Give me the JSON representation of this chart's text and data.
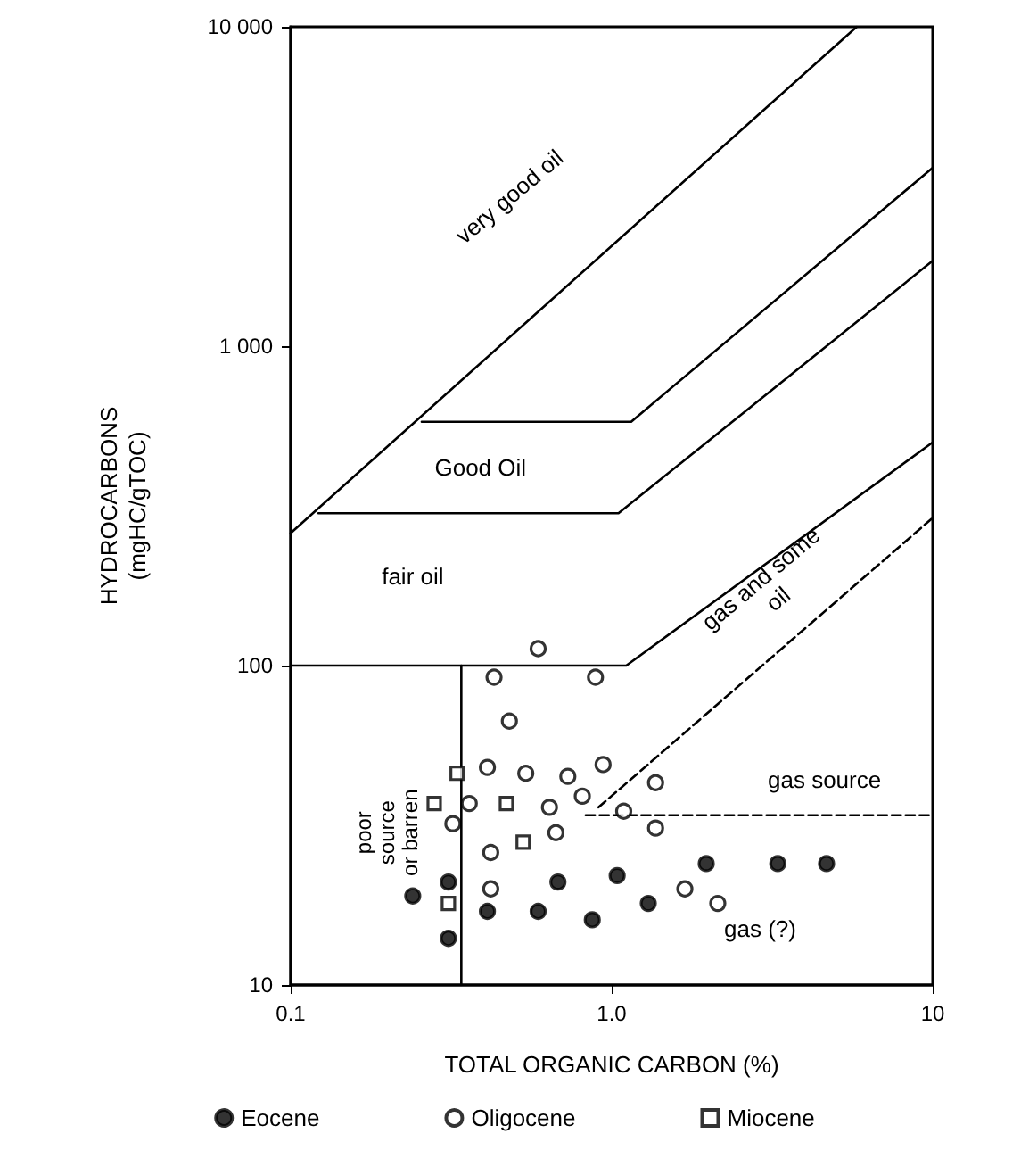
{
  "chart_data": {
    "type": "scatter",
    "xlabel": "TOTAL ORGANIC CARBON (%)",
    "ylabel": "HYDROCARBONS\n(mgHC/gTOC)",
    "log": "xy",
    "grid": false,
    "legend": "bottom",
    "xlim": [
      0.1,
      10
    ],
    "xticks": [
      0.1,
      {
        "value": 1,
        "label": "1.0"
      },
      10
    ],
    "ylim": [
      10,
      10000
    ],
    "yticks": [
      10,
      100,
      {
        "value": 1000,
        "label": "1 000"
      },
      {
        "value": 10000,
        "label": "10 000"
      }
    ],
    "series": [
      {
        "name": "Eocene",
        "color": "#000000",
        "marker": "circle",
        "x": [
          0.24,
          0.31,
          0.31,
          0.41,
          0.59,
          0.68,
          0.87,
          1.04,
          1.3,
          1.97,
          3.29,
          4.67
        ],
        "values": [
          19,
          21,
          14,
          17,
          17,
          21,
          16,
          22,
          18,
          24,
          24,
          24
        ]
      },
      {
        "name": "Oligocene",
        "color": "#000000",
        "marker": "circle",
        "x": [
          0.59,
          0.43,
          0.89,
          0.48,
          0.41,
          0.54,
          0.73,
          0.94,
          1.37,
          0.81,
          0.36,
          0.64,
          1.09,
          0.32,
          1.37,
          0.67,
          0.42,
          0.42,
          1.69,
          2.14
        ],
        "values": [
          113,
          92,
          92,
          67,
          48,
          46,
          45,
          49,
          43,
          39,
          37,
          36,
          35,
          32,
          31,
          30,
          26,
          20,
          20,
          18
        ]
      },
      {
        "name": "Miocene",
        "color": "#000000",
        "marker": "square",
        "x": [
          0.33,
          0.28,
          0.47,
          0.53,
          0.31
        ],
        "values": [
          46,
          37,
          37,
          28,
          18
        ]
      },
      {
        "type": "line",
        "color": "#000000",
        "line_style": "solid",
        "x": [
          0.1,
          5.8
        ],
        "values": [
          260,
          10000
        ]
      },
      {
        "type": "line",
        "color": "#000000",
        "line_style": "solid",
        "x": [
          0.256,
          1.15,
          10
        ],
        "values": [
          580,
          580,
          3620
        ]
      },
      {
        "type": "line",
        "color": "#000000",
        "line_style": "solid",
        "x": [
          0.122,
          1.05,
          10
        ],
        "values": [
          300,
          300,
          1850
        ]
      },
      {
        "type": "line",
        "color": "#000000",
        "line_style": "solid",
        "x": [
          0.1,
          1.11,
          10
        ],
        "values": [
          100,
          100,
          500
        ]
      },
      {
        "type": "line",
        "color": "#000000",
        "line_style": "solid",
        "x": [
          0.34,
          0.34
        ],
        "values": [
          10,
          100
        ]
      },
      {
        "type": "line",
        "color": "#000000",
        "line_style": "dashed",
        "x": [
          0.91,
          10
        ],
        "values": [
          36,
          290
        ]
      },
      {
        "type": "line",
        "color": "#000000",
        "line_style": "dashed",
        "x": [
          0.83,
          10
        ],
        "values": [
          34,
          34
        ]
      }
    ],
    "annotations": [
      "very good oil",
      "Good Oil",
      "fair oil",
      "gas and some\noil",
      "gas source",
      "poor\nsource\nor barren",
      "gas (?)"
    ]
  }
}
